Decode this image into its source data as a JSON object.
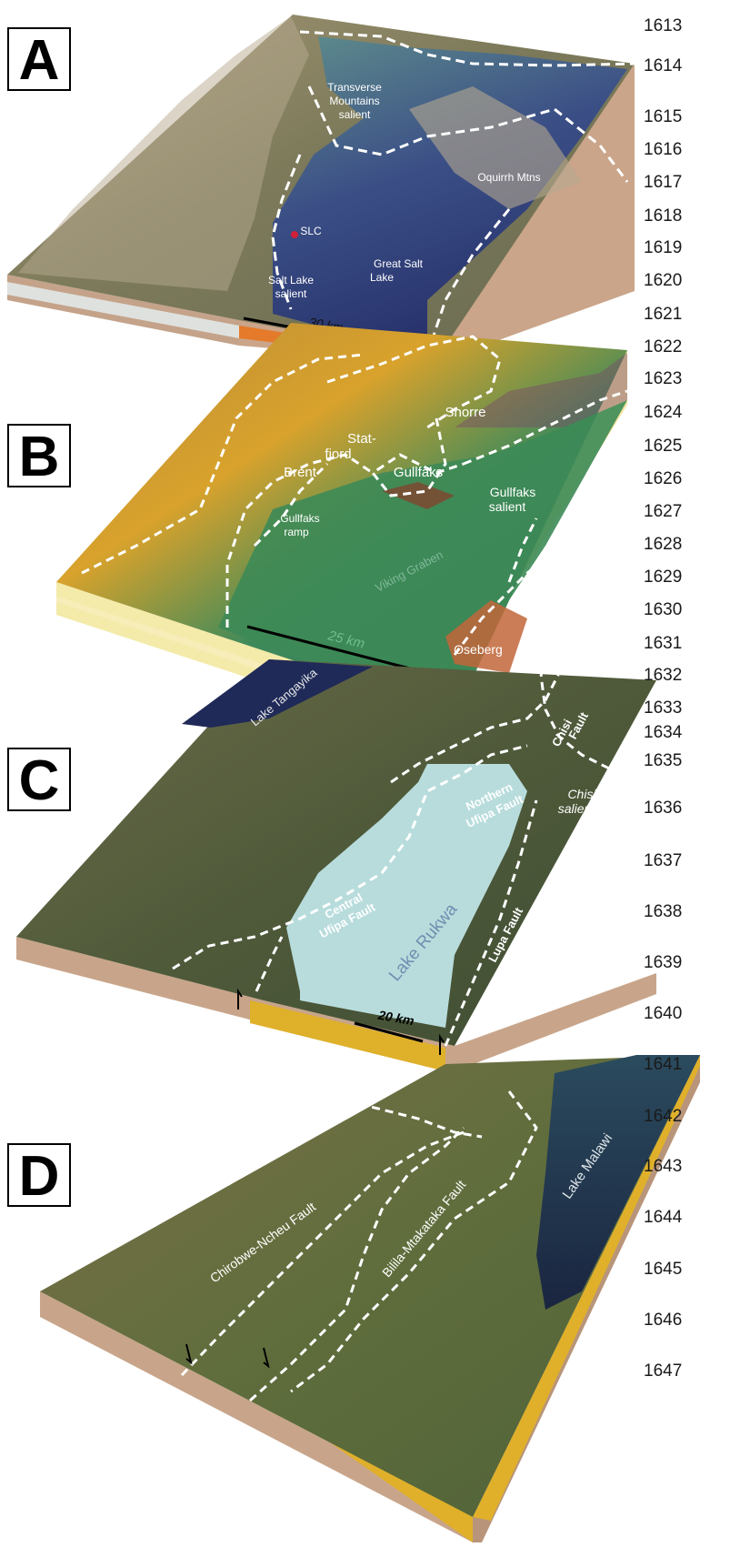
{
  "panels": {
    "A": {
      "label": "A",
      "annotations": {
        "transverse": [
          "Transverse",
          "Mountains",
          "salient"
        ],
        "oquirrh": "Oquirrh Mtns",
        "slc": "SLC",
        "salt_lake_salient": [
          "Salt Lake",
          "salient"
        ],
        "great_salt_lake": [
          "Great Salt",
          "Lake"
        ],
        "scale": "30 km"
      },
      "colors": {
        "lake": "#2f3d78",
        "terrain": "#8a7a5a",
        "base": "#c9a58a"
      }
    },
    "B": {
      "label": "B",
      "annotations": {
        "snorre": "Snorre",
        "statfjord": [
          "Stat-",
          "fjord"
        ],
        "brent": "Brent",
        "gullfaks": "Gullfaks",
        "gullfaks_salient": [
          "Gullfaks",
          "salient"
        ],
        "gullfaks_ramp": [
          "Gullfaks",
          "ramp"
        ],
        "viking_graben": "Viking Graben",
        "scale": "25 km",
        "oseberg": "Oseberg"
      },
      "colors": {
        "graben": "#2f7a55",
        "high": "#c98a2e",
        "base": "#f6eeb4"
      }
    },
    "C": {
      "label": "C",
      "annotations": {
        "lake_tanganyika": "Lake Tangayika",
        "chisi_fault": [
          "Chisi",
          "Fault"
        ],
        "chisi_salient": [
          "Chisi",
          "salient"
        ],
        "northern_ufipa": [
          "Northern",
          "Ufipa Fault"
        ],
        "central_ufipa": [
          "Central",
          "Ufipa Fault"
        ],
        "lake_rukwa": "Lake Rukwa",
        "lupa_fault": "Lupa Fault",
        "scale": "20 km"
      },
      "colors": {
        "lake": "#b8dada",
        "terrain": "#4a5a38",
        "base": "#c9a58a",
        "fill": "#e0b02a"
      }
    },
    "D": {
      "label": "D",
      "annotations": {
        "chirobwe": "Chirobwe-Ncheu Fault",
        "bilila": "Bilila-Mtakataka Fault",
        "lake_malawi": "Lake Malawi"
      },
      "colors": {
        "lake": "#1e3050",
        "terrain": "#5c6a3c",
        "base": "#c9a58a",
        "fill": "#e0b02a"
      }
    }
  },
  "line_numbers": [
    "1613",
    "1614",
    "1615",
    "1616",
    "1617",
    "1618",
    "1619",
    "1620",
    "1621",
    "1622",
    "1623",
    "1624",
    "1625",
    "1626",
    "1627",
    "1628",
    "1629",
    "1630",
    "1631",
    "1632",
    "1633",
    "1634",
    "1635",
    "1636",
    "1637",
    "1638",
    "1639",
    "1640",
    "1641",
    "1642",
    "1643",
    "1644",
    "1645",
    "1646",
    "1647"
  ]
}
